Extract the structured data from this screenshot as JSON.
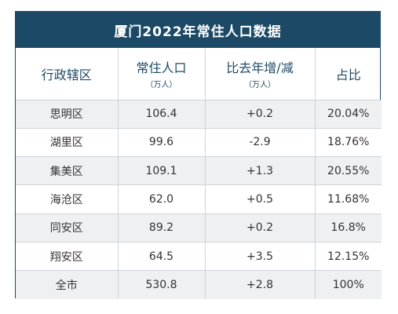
{
  "chart_data": {
    "type": "table",
    "title": "厦门2022年常住人口数据",
    "columns": [
      {
        "label": "行政辖区",
        "unit": ""
      },
      {
        "label": "常住人口",
        "unit": "（万人）"
      },
      {
        "label": "比去年增/减",
        "unit": "（万人）"
      },
      {
        "label": "占比",
        "unit": ""
      }
    ],
    "rows": [
      [
        "思明区",
        "106.4",
        "+0.2",
        "20.04%"
      ],
      [
        "湖里区",
        "99.6",
        "-2.9",
        "18.76%"
      ],
      [
        "集美区",
        "109.1",
        "+1.3",
        "20.55%"
      ],
      [
        "海沧区",
        "62.0",
        "+0.5",
        "11.68%"
      ],
      [
        "同安区",
        "89.2",
        "+0.2",
        "16.8%"
      ],
      [
        "翔安区",
        "64.5",
        "+3.5",
        "12.15%"
      ],
      [
        "全市",
        "530.8",
        "+2.8",
        "100%"
      ]
    ]
  },
  "colors": {
    "header": "#1c4a66",
    "stripe": "#eef0f2"
  }
}
